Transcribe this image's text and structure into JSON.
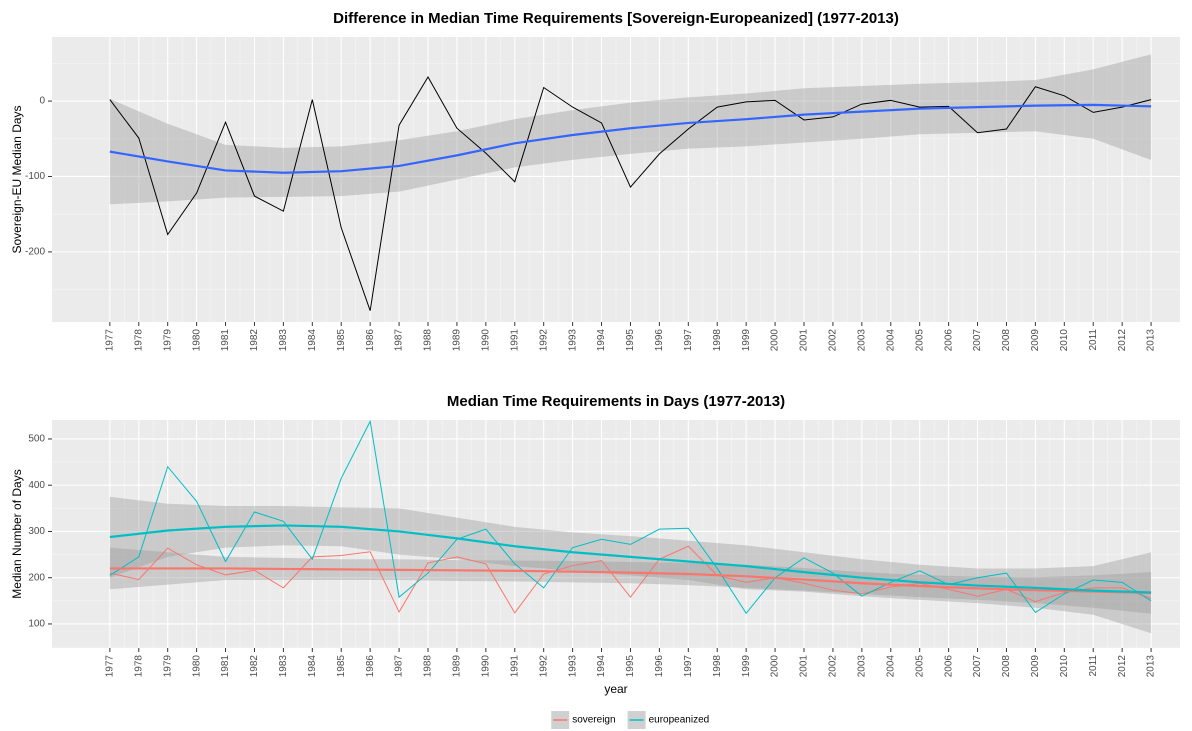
{
  "chart_data": [
    {
      "type": "line",
      "title": "Difference in Median Time Requirements [Sovereign-Europeanized] (1977-2013)",
      "ylabel": "Sovereign-EU Median Days",
      "x": [
        1977,
        1978,
        1979,
        1980,
        1981,
        1982,
        1983,
        1984,
        1985,
        1986,
        1987,
        1988,
        1989,
        1990,
        1991,
        1992,
        1993,
        1994,
        1995,
        1996,
        1997,
        1998,
        1999,
        2000,
        2001,
        2002,
        2003,
        2004,
        2005,
        2006,
        2007,
        2008,
        2009,
        2010,
        2011,
        2012,
        2013
      ],
      "xticks": [
        1977,
        1978,
        1979,
        1980,
        1981,
        1982,
        1983,
        1984,
        1985,
        1986,
        1987,
        1988,
        1989,
        1990,
        1991,
        1992,
        1993,
        1994,
        1995,
        1996,
        1997,
        1998,
        1999,
        2000,
        2001,
        2002,
        2003,
        2004,
        2005,
        2006,
        2007,
        2008,
        2009,
        2010,
        2011,
        2012,
        2013
      ],
      "xlim": [
        1975,
        2014
      ],
      "ylim": [
        -293,
        85
      ],
      "yticks": [
        -200,
        -100,
        0
      ],
      "grid": true,
      "series": [
        {
          "color": "#000000",
          "values": [
            2,
            -49,
            -177,
            -122,
            -28,
            -126,
            -146,
            2,
            -168,
            -278,
            -32,
            32,
            -36,
            -69,
            -107,
            18,
            -8,
            -29,
            -114,
            -70,
            -37,
            -8,
            -1,
            1,
            -25,
            -21,
            -4,
            1,
            -8,
            -7,
            -42,
            -37,
            19,
            7,
            -15,
            -8,
            2
          ],
          "smooth": {
            "color": "#3366FF",
            "x": [
              1977,
              1979,
              1981,
              1983,
              1985,
              1987,
              1989,
              1991,
              1993,
              1995,
              1997,
              1999,
              2001,
              2003,
              2005,
              2007,
              2009,
              2011,
              2013
            ],
            "values": [
              -67,
              -80,
              -92,
              -95,
              -93,
              -86,
              -72,
              -56,
              -45,
              -36,
              -29,
              -24,
              -18,
              -14,
              -10,
              -8,
              -6,
              -5,
              -7
            ],
            "lower": [
              -137,
              -133,
              -128,
              -127,
              -126,
              -120,
              -104,
              -88,
              -78,
              -70,
              -63,
              -60,
              -55,
              -50,
              -44,
              -42,
              -40,
              -50,
              -78
            ],
            "upper": [
              3,
              -30,
              -58,
              -62,
              -60,
              -52,
              -40,
              -24,
              -12,
              -2,
              5,
              10,
              17,
              20,
              23,
              25,
              28,
              42,
              62
            ]
          }
        }
      ]
    },
    {
      "type": "line",
      "title": "Median Time Requirements in Days (1977-2013)",
      "ylabel": "Median Number of Days",
      "xlabel": "year",
      "x": [
        1977,
        1978,
        1979,
        1980,
        1981,
        1982,
        1983,
        1984,
        1985,
        1986,
        1987,
        1988,
        1989,
        1990,
        1991,
        1992,
        1993,
        1994,
        1995,
        1996,
        1997,
        1998,
        1999,
        2000,
        2001,
        2002,
        2003,
        2004,
        2005,
        2006,
        2007,
        2008,
        2009,
        2010,
        2011,
        2012,
        2013
      ],
      "xticks": [
        1977,
        1978,
        1979,
        1980,
        1981,
        1982,
        1983,
        1984,
        1985,
        1986,
        1987,
        1988,
        1989,
        1990,
        1991,
        1992,
        1993,
        1994,
        1995,
        1996,
        1997,
        1998,
        1999,
        2000,
        2001,
        2002,
        2003,
        2004,
        2005,
        2006,
        2007,
        2008,
        2009,
        2010,
        2011,
        2012,
        2013
      ],
      "xlim": [
        1975,
        2014
      ],
      "ylim": [
        48,
        541
      ],
      "yticks": [
        100,
        200,
        300,
        400,
        500
      ],
      "grid": true,
      "legend": "bottom",
      "series": [
        {
          "name": "sovereign",
          "color": "#F8766D",
          "values": [
            210,
            196,
            264,
            228,
            206,
            216,
            178,
            245,
            248,
            256,
            126,
            232,
            245,
            230,
            124,
            208,
            226,
            237,
            158,
            240,
            268,
            205,
            190,
            200,
            188,
            173,
            165,
            180,
            188,
            175,
            160,
            175,
            148,
            168,
            178,
            178,
            155
          ],
          "smooth": {
            "color": "#F8766D",
            "x": [
              1977,
              1979,
              1981,
              1983,
              1985,
              1987,
              1989,
              1991,
              1993,
              1995,
              1997,
              1999,
              2001,
              2003,
              2005,
              2007,
              2009,
              2011,
              2013
            ],
            "values": [
              220,
              220,
              220,
              219,
              218,
              217,
              216,
              215,
              213,
              211,
              208,
              203,
              196,
              188,
              182,
              177,
              173,
              170,
              167
            ],
            "lower": [
              175,
              185,
              195,
              195,
              195,
              195,
              193,
              192,
              190,
              188,
              184,
              178,
              172,
              165,
              158,
              152,
              145,
              135,
              122
            ],
            "upper": [
              265,
              255,
              245,
              243,
              240,
              240,
              238,
              237,
              236,
              234,
              232,
              228,
              221,
              212,
              206,
              202,
              201,
              205,
              212
            ]
          }
        },
        {
          "name": "europeanized",
          "color": "#00BFC4",
          "values": [
            205,
            245,
            440,
            365,
            235,
            342,
            322,
            240,
            415,
            538,
            158,
            210,
            283,
            305,
            230,
            178,
            265,
            283,
            272,
            305,
            307,
            220,
            123,
            200,
            243,
            210,
            160,
            190,
            215,
            185,
            200,
            210,
            125,
            165,
            195,
            190,
            150
          ],
          "smooth": {
            "color": "#00BFC4",
            "x": [
              1977,
              1979,
              1981,
              1983,
              1985,
              1987,
              1989,
              1991,
              1993,
              1995,
              1997,
              1999,
              2001,
              2003,
              2005,
              2007,
              2009,
              2011,
              2013
            ],
            "values": [
              288,
              302,
              310,
              313,
              310,
              300,
              285,
              268,
              255,
              245,
              235,
              225,
              212,
              200,
              190,
              183,
              178,
              172,
              168
            ],
            "lower": [
              200,
              245,
              265,
              270,
              268,
              250,
              240,
              225,
              215,
              205,
              195,
              175,
              170,
              160,
              152,
              145,
              135,
              120,
              80
            ],
            "upper": [
              375,
              360,
              355,
              355,
              352,
              350,
              330,
              310,
              298,
              290,
              280,
              270,
              255,
              240,
              228,
              220,
              220,
              225,
              255
            ]
          }
        }
      ]
    }
  ]
}
